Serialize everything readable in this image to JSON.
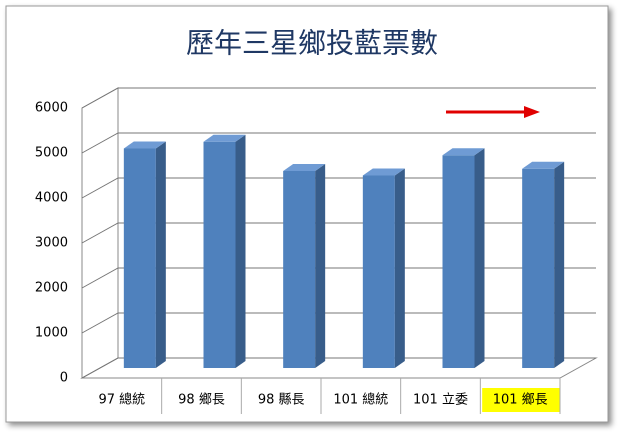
{
  "chart_data": {
    "type": "bar3d",
    "title": "歷年三星鄉投藍票數",
    "categories": [
      "97 總統",
      "98 鄉長",
      "98 縣長",
      "101 總統",
      "101 立委",
      "101 鄉長"
    ],
    "values": [
      5100,
      5250,
      4600,
      4500,
      4950,
      4650
    ],
    "color": "#4f81bd",
    "ylim": [
      0,
      6000
    ],
    "yticks": [
      0,
      1000,
      2000,
      3000,
      4000,
      5000,
      6000
    ],
    "grid": true,
    "highlight_category": 5
  }
}
